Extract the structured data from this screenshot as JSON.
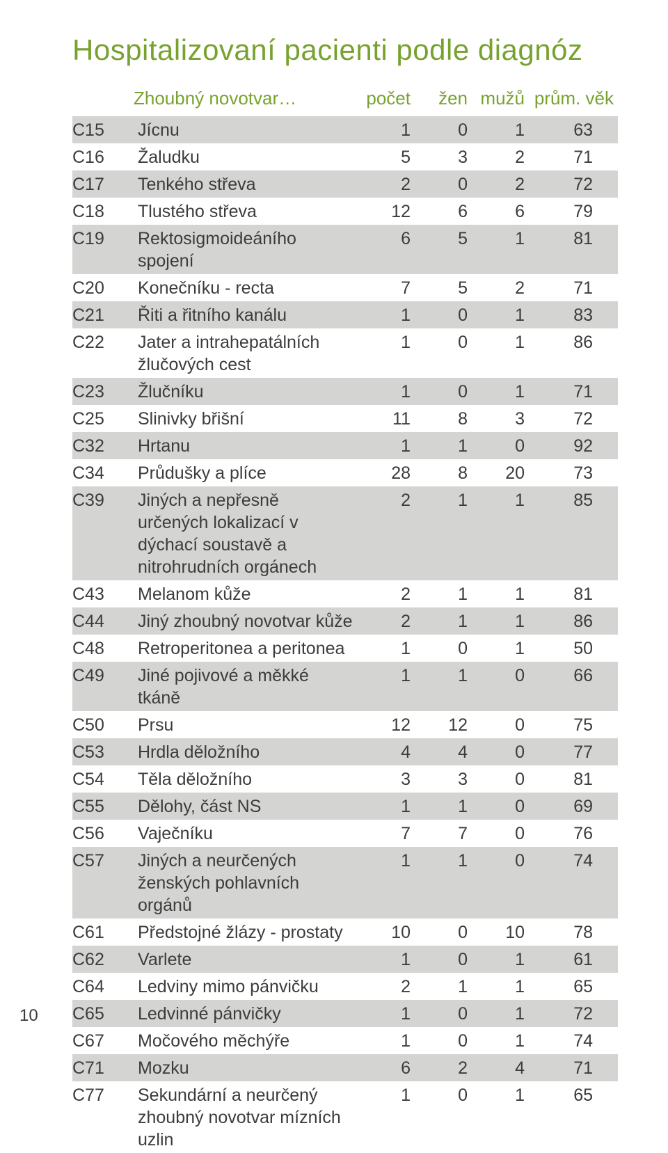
{
  "title": "Hospitalizovaní pacienti podle diagnóz",
  "title_color": "#78a22f",
  "page_number": "10",
  "stripe_color": "#d4d4d2",
  "row_text_color": "#3c3c3c",
  "header_color": "#78a22f",
  "columns": {
    "name": "Zhoubný novotvar…",
    "count": "počet",
    "women": "žen",
    "men": "mužů",
    "age": "prům. věk"
  },
  "rows": [
    {
      "code": "C15",
      "name": "Jícnu",
      "count": "1",
      "women": "0",
      "men": "1",
      "age": "63",
      "stripe": true
    },
    {
      "code": "C16",
      "name": "Žaludku",
      "count": "5",
      "women": "3",
      "men": "2",
      "age": "71",
      "stripe": false
    },
    {
      "code": "C17",
      "name": "Tenkého střeva",
      "count": "2",
      "women": "0",
      "men": "2",
      "age": "72",
      "stripe": true
    },
    {
      "code": "C18",
      "name": "Tlustého střeva",
      "count": "12",
      "women": "6",
      "men": "6",
      "age": "79",
      "stripe": false
    },
    {
      "code": "C19",
      "name": "Rektosigmoideáního spojení",
      "count": "6",
      "women": "5",
      "men": "1",
      "age": "81",
      "stripe": true
    },
    {
      "code": "C20",
      "name": "Konečníku - recta",
      "count": "7",
      "women": "5",
      "men": "2",
      "age": "71",
      "stripe": false
    },
    {
      "code": "C21",
      "name": "Řiti a řitního kanálu",
      "count": "1",
      "women": "0",
      "men": "1",
      "age": "83",
      "stripe": true
    },
    {
      "code": "C22",
      "name": "Jater a intrahepatálních žlučových cest",
      "count": "1",
      "women": "0",
      "men": "1",
      "age": "86",
      "stripe": false
    },
    {
      "code": "C23",
      "name": "Žlučníku",
      "count": "1",
      "women": "0",
      "men": "1",
      "age": "71",
      "stripe": true
    },
    {
      "code": "C25",
      "name": "Slinivky břišní",
      "count": "11",
      "women": "8",
      "men": "3",
      "age": "72",
      "stripe": false
    },
    {
      "code": "C32",
      "name": "Hrtanu",
      "count": "1",
      "women": "1",
      "men": "0",
      "age": "92",
      "stripe": true
    },
    {
      "code": "C34",
      "name": "Průdušky a plíce",
      "count": "28",
      "women": "8",
      "men": "20",
      "age": "73",
      "stripe": false
    },
    {
      "code": "C39",
      "name": "Jiných a nepřesně určených lokalizací v dýchací soustavě a nitrohrudních orgánech",
      "count": "2",
      "women": "1",
      "men": "1",
      "age": "85",
      "stripe": true
    },
    {
      "code": "C43",
      "name": "Melanom kůže",
      "count": "2",
      "women": "1",
      "men": "1",
      "age": "81",
      "stripe": false
    },
    {
      "code": "C44",
      "name": "Jiný zhoubný novotvar kůže",
      "count": "2",
      "women": "1",
      "men": "1",
      "age": "86",
      "stripe": true
    },
    {
      "code": "C48",
      "name": "Retroperitonea a peritonea",
      "count": "1",
      "women": "0",
      "men": "1",
      "age": "50",
      "stripe": false
    },
    {
      "code": "C49",
      "name": "Jiné pojivové a měkké tkáně",
      "count": "1",
      "women": "1",
      "men": "0",
      "age": "66",
      "stripe": true
    },
    {
      "code": "C50",
      "name": "Prsu",
      "count": "12",
      "women": "12",
      "men": "0",
      "age": "75",
      "stripe": false
    },
    {
      "code": "C53",
      "name": "Hrdla děložního",
      "count": "4",
      "women": "4",
      "men": "0",
      "age": "77",
      "stripe": true
    },
    {
      "code": "C54",
      "name": "Těla děložního",
      "count": "3",
      "women": "3",
      "men": "0",
      "age": "81",
      "stripe": false
    },
    {
      "code": "C55",
      "name": "Dělohy, část NS",
      "count": "1",
      "women": "1",
      "men": "0",
      "age": "69",
      "stripe": true
    },
    {
      "code": "C56",
      "name": "Vaječníku",
      "count": "7",
      "women": "7",
      "men": "0",
      "age": "76",
      "stripe": false
    },
    {
      "code": "C57",
      "name": "Jiných a neurčených ženských pohlavních orgánů",
      "count": "1",
      "women": "1",
      "men": "0",
      "age": "74",
      "stripe": true
    },
    {
      "code": "C61",
      "name": "Předstojné žlázy - prostaty",
      "count": "10",
      "women": "0",
      "men": "10",
      "age": "78",
      "stripe": false
    },
    {
      "code": "C62",
      "name": "Varlete",
      "count": "1",
      "women": "0",
      "men": "1",
      "age": "61",
      "stripe": true
    },
    {
      "code": "C64",
      "name": "Ledviny mimo pánvičku",
      "count": "2",
      "women": "1",
      "men": "1",
      "age": "65",
      "stripe": false
    },
    {
      "code": "C65",
      "name": "Ledvinné pánvičky",
      "count": "1",
      "women": "0",
      "men": "1",
      "age": "72",
      "stripe": true
    },
    {
      "code": "C67",
      "name": "Močového měchýře",
      "count": "1",
      "women": "0",
      "men": "1",
      "age": "74",
      "stripe": false
    },
    {
      "code": "C71",
      "name": "Mozku",
      "count": "6",
      "women": "2",
      "men": "4",
      "age": "71",
      "stripe": true
    },
    {
      "code": "C77",
      "name": "Sekundární a neurčený zhoubný novotvar mízních uzlin",
      "count": "1",
      "women": "0",
      "men": "1",
      "age": "65",
      "stripe": false
    }
  ]
}
